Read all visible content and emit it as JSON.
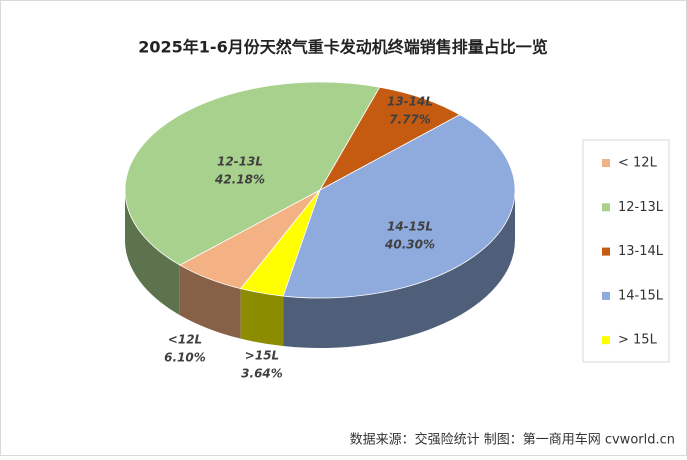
{
  "chart_data": {
    "type": "pie3d",
    "title": "2025年1-6月份天然气重卡发动机终端销售排量占比一览",
    "categories": [
      "< 12L",
      "12-13L",
      "13-14L",
      "14-15L",
      "> 15L"
    ],
    "slice_labels": [
      "<12L",
      "12-13L",
      "13-14L",
      "14-15L",
      ">15L"
    ],
    "values": [
      6.1,
      42.18,
      7.77,
      40.3,
      3.64
    ],
    "value_labels": [
      "6.10%",
      "42.18%",
      "7.77%",
      "40.30%",
      "3.64%"
    ],
    "colors": [
      "#f4b183",
      "#a9d18e",
      "#c55a11",
      "#8faadc",
      "#ffff00"
    ],
    "legend": "right",
    "source": "数据来源：交强险统计  制图：第一商用车网 cvworld.cn"
  }
}
